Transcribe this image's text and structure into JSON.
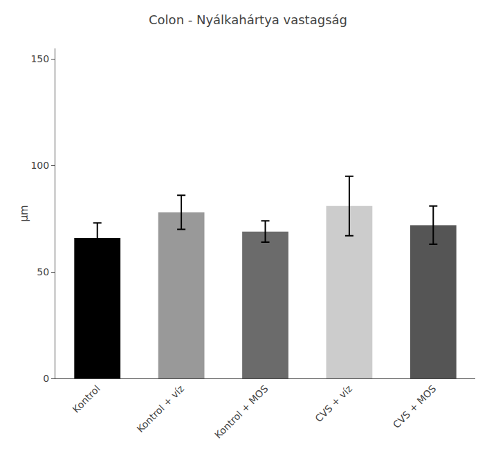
{
  "chart_data": {
    "type": "bar",
    "title": "Colon - Nyálkahártya vastagság",
    "ylabel": "μm",
    "categories": [
      "Kontrol",
      "Kontrol + víz",
      "Kontrol + MOS",
      "CVS + víz",
      "CVS + MOS"
    ],
    "values": [
      66,
      78,
      69,
      81,
      72
    ],
    "errors": [
      7,
      8,
      5,
      14,
      9
    ],
    "colors": [
      "#000000",
      "#999999",
      "#6b6b6b",
      "#cccccc",
      "#555555"
    ],
    "ylim": [
      0,
      155
    ],
    "yticks": [
      0,
      50,
      100,
      150
    ],
    "grid": false
  }
}
